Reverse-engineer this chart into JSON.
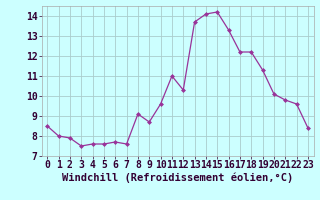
{
  "x": [
    0,
    1,
    2,
    3,
    4,
    5,
    6,
    7,
    8,
    9,
    10,
    11,
    12,
    13,
    14,
    15,
    16,
    17,
    18,
    19,
    20,
    21,
    22,
    23
  ],
  "y": [
    8.5,
    8.0,
    7.9,
    7.5,
    7.6,
    7.6,
    7.7,
    7.6,
    9.1,
    8.7,
    9.6,
    11.0,
    10.3,
    13.7,
    14.1,
    14.2,
    13.3,
    12.2,
    12.2,
    11.3,
    10.1,
    9.8,
    9.6,
    8.4
  ],
  "line_color": "#993399",
  "marker": "D",
  "marker_size": 2.5,
  "background_color": "#ccffff",
  "grid_color": "#aacccc",
  "xlabel": "Windchill (Refroidissement éolien,°C)",
  "xlabel_fontsize": 7.5,
  "tick_label_fontsize": 7,
  "ylim": [
    7,
    14.5
  ],
  "xlim": [
    -0.5,
    23.5
  ],
  "yticks": [
    7,
    8,
    9,
    10,
    11,
    12,
    13,
    14
  ],
  "xticks": [
    0,
    1,
    2,
    3,
    4,
    5,
    6,
    7,
    8,
    9,
    10,
    11,
    12,
    13,
    14,
    15,
    16,
    17,
    18,
    19,
    20,
    21,
    22,
    23
  ]
}
